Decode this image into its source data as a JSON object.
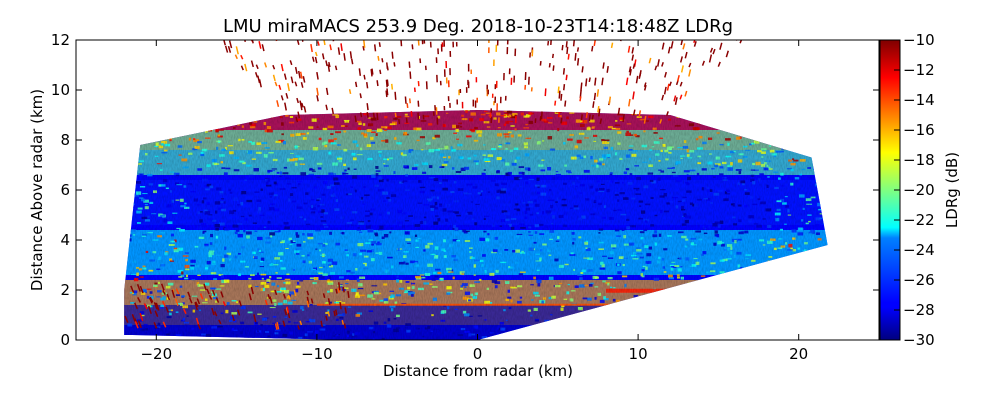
{
  "chart_data": {
    "type": "heatmap",
    "title": "LMU miraMACS 253.9 Deg. 2018-10-23T14:18:48Z  LDRg",
    "xlabel": "Distance from radar (km)",
    "ylabel": "Distance Above radar  (km)",
    "xlim": [
      -25,
      25
    ],
    "ylim": [
      0,
      12
    ],
    "x_ticks": [
      -20,
      -10,
      0,
      10,
      20
    ],
    "x_tick_labels": [
      "−20",
      "−10",
      "0",
      "10",
      "20"
    ],
    "y_ticks": [
      0,
      2,
      4,
      6,
      8,
      10,
      12
    ],
    "y_tick_labels": [
      "0",
      "2",
      "4",
      "6",
      "8",
      "10",
      "12"
    ],
    "colorbar": {
      "label": "LDRg (dB)",
      "range": [
        -30,
        -10
      ],
      "ticks": [
        -30,
        -28,
        -26,
        -24,
        -22,
        -20,
        -18,
        -16,
        -14,
        -12,
        -10
      ],
      "tick_labels": [
        "−30",
        "−28",
        "−26",
        "−24",
        "−22",
        "−20",
        "−18",
        "−16",
        "−14",
        "−12",
        "−10"
      ],
      "colormap": "jet"
    },
    "scan": {
      "left_range_km": 22,
      "left_top_km": 7.8,
      "right_end_km": [
        21.8,
        3.8
      ],
      "right_top_km": 7.3
    },
    "layers": [
      {
        "name": "upper boundary",
        "y_km": 8.5,
        "ldr_db": -13
      },
      {
        "name": "upper transition",
        "y_km": 7.5,
        "ldr_db": -21
      },
      {
        "name": "mid cloud",
        "y_km": 5.5,
        "ldr_db": -27
      },
      {
        "name": "melting layer",
        "y_km": 3.5,
        "ldr_db": -23
      },
      {
        "name": "low layer",
        "y_km": 1.5,
        "ldr_db": -16
      },
      {
        "name": "near ground",
        "y_km": 0.5,
        "ldr_db": -29
      }
    ]
  }
}
